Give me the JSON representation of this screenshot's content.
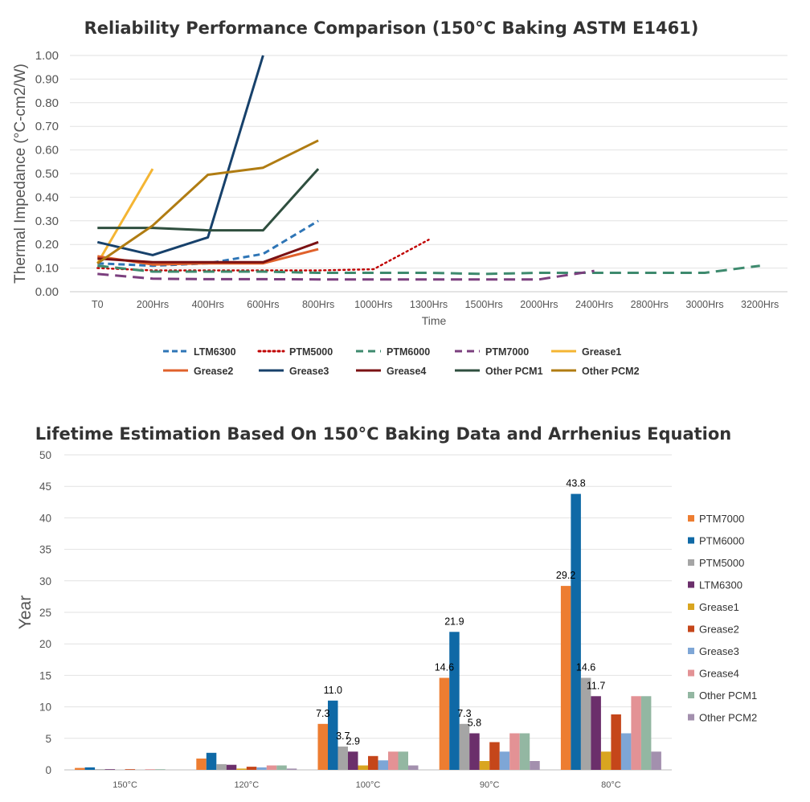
{
  "chart_data": [
    {
      "type": "line",
      "title": "Reliability Performance Comparison (150°C Baking ASTM E1461)",
      "xlabel": "Time",
      "ylabel": "Thermal Impedance (°C-cm2/W)",
      "categories": [
        "T0",
        "200Hrs",
        "400Hrs",
        "600Hrs",
        "800Hrs",
        "1000Hrs",
        "1300Hrs",
        "1500Hrs",
        "2000Hrs",
        "2400Hrs",
        "2800Hrs",
        "3000Hrs",
        "3200Hrs"
      ],
      "y_ticks": [
        "0.00",
        "0.10",
        "0.20",
        "0.30",
        "0.40",
        "0.50",
        "0.60",
        "0.70",
        "0.80",
        "0.90",
        "1.00"
      ],
      "ylim": [
        0,
        1.0
      ],
      "grid": true,
      "legend_position": "bottom",
      "series": [
        {
          "name": "LTM6300",
          "color": "#2E75B6",
          "dash": "dash",
          "values": [
            0.12,
            0.11,
            0.12,
            0.16,
            0.3,
            null,
            null,
            null,
            null,
            null,
            null,
            null,
            null
          ]
        },
        {
          "name": "PTM5000",
          "color": "#C00000",
          "dash": "dot",
          "values": [
            0.1,
            0.09,
            0.09,
            0.09,
            0.09,
            0.095,
            0.22,
            null,
            null,
            null,
            null,
            null,
            null
          ]
        },
        {
          "name": "PTM6000",
          "color": "#3E8A6E",
          "dash": "longdash",
          "values": [
            0.11,
            0.085,
            0.085,
            0.085,
            0.08,
            0.08,
            0.08,
            0.075,
            0.08,
            0.08,
            0.08,
            0.08,
            0.11
          ]
        },
        {
          "name": "PTM7000",
          "color": "#7B3F7E",
          "dash": "longdash",
          "values": [
            0.075,
            0.055,
            0.053,
            0.053,
            0.052,
            0.052,
            0.052,
            0.052,
            0.052,
            0.088,
            null,
            null,
            null
          ]
        },
        {
          "name": "Grease1",
          "color": "#F4B533",
          "dash": "solid",
          "values": [
            0.12,
            0.52,
            null,
            null,
            null,
            null,
            null,
            null,
            null,
            null,
            null,
            null,
            null
          ]
        },
        {
          "name": "Grease2",
          "color": "#E0612B",
          "dash": "solid",
          "values": [
            0.15,
            0.115,
            0.12,
            0.12,
            0.18,
            null,
            null,
            null,
            null,
            null,
            null,
            null,
            null
          ]
        },
        {
          "name": "Grease3",
          "color": "#17416B",
          "dash": "solid",
          "values": [
            0.21,
            0.155,
            0.23,
            1.0,
            null,
            null,
            null,
            null,
            null,
            null,
            null,
            null,
            null
          ]
        },
        {
          "name": "Grease4",
          "color": "#7B1113",
          "dash": "solid",
          "values": [
            0.14,
            0.125,
            0.125,
            0.125,
            0.21,
            null,
            null,
            null,
            null,
            null,
            null,
            null,
            null
          ]
        },
        {
          "name": "Other PCM1",
          "color": "#2F4F3F",
          "dash": "solid",
          "values": [
            0.27,
            0.27,
            0.26,
            0.26,
            0.52,
            null,
            null,
            null,
            null,
            null,
            null,
            null,
            null
          ]
        },
        {
          "name": "Other PCM2",
          "color": "#B07C12",
          "dash": "solid",
          "values": [
            0.12,
            0.28,
            0.495,
            0.525,
            0.64,
            null,
            null,
            null,
            null,
            null,
            null,
            null,
            null
          ]
        }
      ]
    },
    {
      "type": "bar",
      "title": "Lifetime Estimation Based On 150°C Baking Data and Arrhenius Equation",
      "xlabel": "",
      "ylabel": "Year",
      "categories": [
        "150°C",
        "120°C",
        "100°C",
        "90°C",
        "80°C"
      ],
      "y_ticks": [
        "0",
        "5",
        "10",
        "15",
        "20",
        "25",
        "30",
        "35",
        "40",
        "45",
        "50"
      ],
      "ylim": [
        0,
        50
      ],
      "grid": true,
      "legend_position": "right",
      "series": [
        {
          "name": "PTM7000",
          "color": "#ED7D31",
          "values": [
            0.3,
            1.8,
            7.3,
            14.6,
            29.2
          ],
          "labels": [
            "",
            "",
            "7.3",
            "14.6",
            "29.2"
          ]
        },
        {
          "name": "PTM6000",
          "color": "#0F69A6",
          "values": [
            0.4,
            2.7,
            11.0,
            21.9,
            43.8
          ],
          "labels": [
            "",
            "",
            "11.0",
            "21.9",
            "43.8"
          ]
        },
        {
          "name": "PTM5000",
          "color": "#A5A5A5",
          "values": [
            0.1,
            0.9,
            3.7,
            7.3,
            14.6
          ],
          "labels": [
            "",
            "",
            "3.7",
            "7.3",
            "14.6"
          ]
        },
        {
          "name": "LTM6300",
          "color": "#6B2F6B",
          "values": [
            0.1,
            0.8,
            2.9,
            5.8,
            11.7
          ],
          "labels": [
            "",
            "",
            "2.9",
            "5.8",
            "11.7"
          ]
        },
        {
          "name": "Grease1",
          "color": "#D9A520",
          "values": [
            0.0,
            0.2,
            0.7,
            1.4,
            2.9
          ],
          "labels": [
            "",
            "",
            "",
            "",
            ""
          ]
        },
        {
          "name": "Grease2",
          "color": "#C5461A",
          "values": [
            0.1,
            0.5,
            2.2,
            4.4,
            8.8
          ],
          "labels": [
            "",
            "",
            "",
            "",
            ""
          ]
        },
        {
          "name": "Grease3",
          "color": "#7EA6D6",
          "values": [
            0.0,
            0.4,
            1.5,
            2.9,
            5.8
          ],
          "labels": [
            "",
            "",
            "",
            "",
            ""
          ]
        },
        {
          "name": "Grease4",
          "color": "#E39295",
          "values": [
            0.1,
            0.7,
            2.9,
            5.8,
            11.7
          ],
          "labels": [
            "",
            "",
            "",
            "",
            ""
          ]
        },
        {
          "name": "Other PCM1",
          "color": "#93B7A2",
          "values": [
            0.1,
            0.7,
            2.9,
            5.8,
            11.7
          ],
          "labels": [
            "",
            "",
            "",
            "",
            ""
          ]
        },
        {
          "name": "Other PCM2",
          "color": "#A390AE",
          "values": [
            0.0,
            0.2,
            0.7,
            1.4,
            2.9
          ],
          "labels": [
            "",
            "",
            "",
            "",
            ""
          ]
        }
      ]
    }
  ]
}
